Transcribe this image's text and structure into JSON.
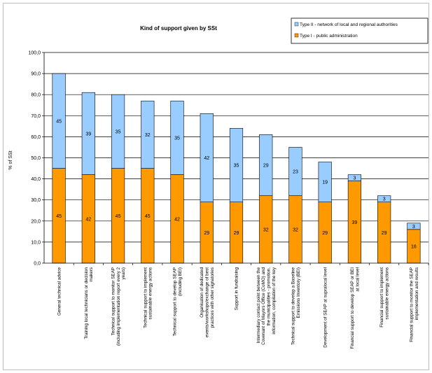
{
  "chart_data": {
    "type": "bar",
    "stacked": true,
    "title": "Kind of support given by SSt",
    "xlabel": "",
    "ylabel": "% of SSt",
    "ylim": [
      0,
      100
    ],
    "yticks": [
      "0,0",
      "10,0",
      "20,0",
      "30,0",
      "40,0",
      "50,0",
      "60,0",
      "70,0",
      "80,0",
      "90,0",
      "100,0"
    ],
    "grid": true,
    "legend_position": "top-right",
    "categories": [
      [
        "General technical advice"
      ],
      [
        "Training local technicians or decision",
        "makers"
      ],
      [
        "Technical support to monitor SEAP",
        "(including implementation report every 2",
        "years)"
      ],
      [
        "Technical support to implement",
        "sustainable energy actions"
      ],
      [
        "Technical support to develop SEAP",
        "(including BEI)"
      ],
      [
        "Organisation of dedicated",
        "events/workshops/exchange of best",
        "practices with other signatories"
      ],
      [
        "Support in fundraising"
      ],
      [
        "Intermediary contact point between the",
        "Covenant of Mayors Office (CoMO) and",
        "the municipalities - promotion,",
        "information, compilation of the key"
      ],
      [
        "Technical support to develop a Baseline",
        "Emissions Inventory (BEI)"
      ],
      [
        "Development of SEAP at supralocal level"
      ],
      [
        "Financial support to develop SEAP or BEI",
        "at local level"
      ],
      [
        "Financial support to implement",
        "sustainable energy actions"
      ],
      [
        "Financial support to monitor the SEAP",
        "implementation and results"
      ]
    ],
    "series": [
      {
        "name": "Type I - public administration",
        "color": "#FF9900",
        "values": [
          45,
          42,
          45,
          45,
          42,
          29,
          29,
          32,
          32,
          29,
          39,
          29,
          16
        ],
        "labels": [
          "45",
          "42",
          "45",
          "45",
          "42",
          "29",
          "29",
          "32",
          "32",
          "29",
          "39",
          "29",
          "16"
        ]
      },
      {
        "name": "Type II - network of local and regional authorities",
        "color": "#99CCFF",
        "values": [
          45,
          39,
          35,
          32,
          35,
          42,
          35,
          29,
          23,
          19,
          3,
          3,
          3
        ],
        "labels": [
          "45",
          "39",
          "35",
          "32",
          "35",
          "42",
          "35",
          "29",
          "23",
          "19",
          "3",
          "3",
          "3"
        ]
      }
    ]
  }
}
